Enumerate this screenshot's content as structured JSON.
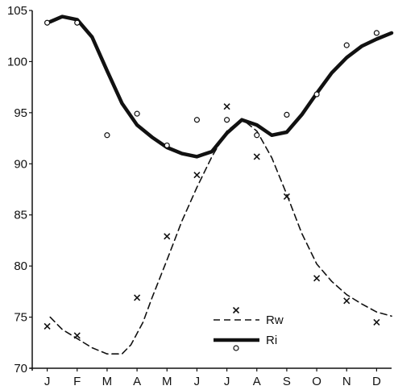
{
  "chart_data": {
    "type": "line",
    "title": "",
    "xlabel": "",
    "ylabel": "",
    "categories": [
      "J",
      "F",
      "M",
      "A",
      "M",
      "J",
      "J",
      "A",
      "S",
      "O",
      "N",
      "D"
    ],
    "ylim": [
      70,
      105
    ],
    "yticks": [
      70,
      75,
      80,
      85,
      90,
      95,
      100,
      105
    ],
    "grid": false,
    "legend_position": "bottom-center",
    "series": [
      {
        "name": "Rw",
        "style": "dashed",
        "marker": "x",
        "values": [
          74.1,
          73.2,
          null,
          76.9,
          82.9,
          88.9,
          95.6,
          90.7,
          86.8,
          78.8,
          76.6,
          74.5
        ],
        "curve": [
          {
            "x": 0.6,
            "y": 75.0
          },
          {
            "x": 1.0,
            "y": 73.8
          },
          {
            "x": 1.5,
            "y": 72.9
          },
          {
            "x": 2.0,
            "y": 72.0
          },
          {
            "x": 2.5,
            "y": 71.4
          },
          {
            "x": 3.0,
            "y": 71.4
          },
          {
            "x": 3.3,
            "y": 72.3
          },
          {
            "x": 3.7,
            "y": 74.5
          },
          {
            "x": 4.0,
            "y": 76.9
          },
          {
            "x": 4.5,
            "y": 80.6
          },
          {
            "x": 5.0,
            "y": 84.4
          },
          {
            "x": 5.5,
            "y": 87.7
          },
          {
            "x": 6.0,
            "y": 90.7
          },
          {
            "x": 6.5,
            "y": 93.2
          },
          {
            "x": 7.0,
            "y": 94.4
          },
          {
            "x": 7.5,
            "y": 93.2
          },
          {
            "x": 8.0,
            "y": 90.6
          },
          {
            "x": 8.5,
            "y": 87.0
          },
          {
            "x": 9.0,
            "y": 83.2
          },
          {
            "x": 9.5,
            "y": 80.2
          },
          {
            "x": 10.0,
            "y": 78.5
          },
          {
            "x": 10.5,
            "y": 77.2
          },
          {
            "x": 11.0,
            "y": 76.3
          },
          {
            "x": 11.5,
            "y": 75.5
          },
          {
            "x": 12.0,
            "y": 75.1
          }
        ]
      },
      {
        "name": "Ri",
        "style": "solid-thick",
        "marker": "circle",
        "values": [
          103.8,
          103.8,
          92.8,
          94.9,
          91.8,
          94.3,
          94.3,
          92.8,
          94.8,
          96.8,
          101.6,
          102.8
        ],
        "curve": [
          {
            "x": 0.6,
            "y": 103.9
          },
          {
            "x": 1.0,
            "y": 104.4
          },
          {
            "x": 1.5,
            "y": 104.1
          },
          {
            "x": 2.0,
            "y": 102.4
          },
          {
            "x": 2.5,
            "y": 99.1
          },
          {
            "x": 3.0,
            "y": 95.9
          },
          {
            "x": 3.5,
            "y": 93.8
          },
          {
            "x": 4.0,
            "y": 92.6
          },
          {
            "x": 4.5,
            "y": 91.6
          },
          {
            "x": 5.0,
            "y": 91.0
          },
          {
            "x": 5.5,
            "y": 90.7
          },
          {
            "x": 6.0,
            "y": 91.2
          },
          {
            "x": 6.5,
            "y": 93.0
          },
          {
            "x": 7.0,
            "y": 94.3
          },
          {
            "x": 7.5,
            "y": 93.8
          },
          {
            "x": 8.0,
            "y": 92.8
          },
          {
            "x": 8.5,
            "y": 93.1
          },
          {
            "x": 9.0,
            "y": 94.8
          },
          {
            "x": 9.5,
            "y": 96.9
          },
          {
            "x": 10.0,
            "y": 98.9
          },
          {
            "x": 10.5,
            "y": 100.4
          },
          {
            "x": 11.0,
            "y": 101.5
          },
          {
            "x": 11.5,
            "y": 102.2
          },
          {
            "x": 12.0,
            "y": 102.8
          }
        ]
      }
    ]
  }
}
